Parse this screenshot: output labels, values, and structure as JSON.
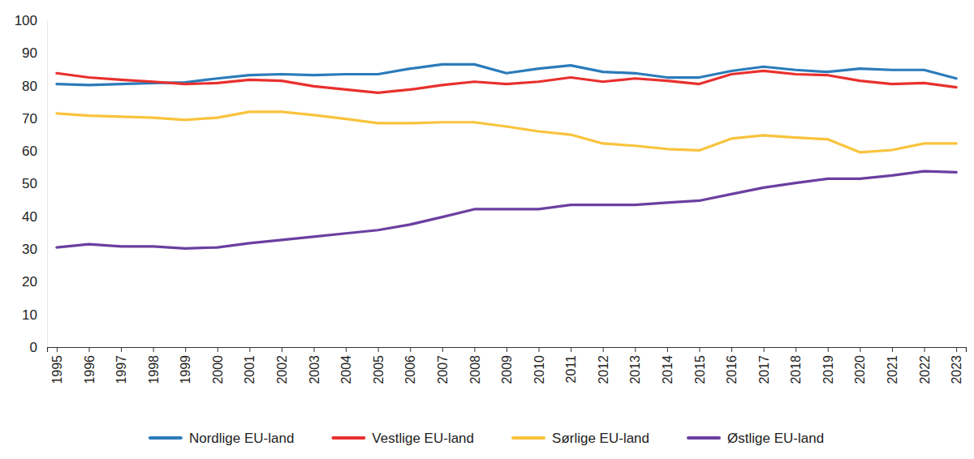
{
  "chart_data": {
    "type": "line",
    "categories": [
      "1995",
      "1996",
      "1997",
      "1998",
      "1999",
      "2000",
      "2001",
      "2002",
      "2003",
      "2004",
      "2005",
      "2006",
      "2007",
      "2008",
      "2009",
      "2010",
      "2011",
      "2012",
      "2013",
      "2014",
      "2015",
      "2016",
      "2017",
      "2018",
      "2019",
      "2020",
      "2021",
      "2022",
      "2023"
    ],
    "series": [
      {
        "name": "Nordlige EU-land",
        "color": "#2b7bba",
        "values": [
          80.5,
          80.2,
          80.5,
          80.8,
          81,
          82.2,
          83.2,
          83.5,
          83.2,
          83.5,
          83.5,
          85.2,
          86.5,
          86.5,
          83.8,
          85.2,
          86.2,
          84.2,
          83.8,
          82.5,
          82.5,
          84.5,
          85.8,
          84.8,
          84.2,
          85.2,
          84.8,
          84.8,
          82.2
        ]
      },
      {
        "name": "Vestlige EU-land",
        "color": "#e8302e",
        "values": [
          83.8,
          82.5,
          81.8,
          81.2,
          80.5,
          80.8,
          81.8,
          81.5,
          79.8,
          78.8,
          77.8,
          78.8,
          80.2,
          81.2,
          80.5,
          81.2,
          82.5,
          81.2,
          82.2,
          81.5,
          80.5,
          83.5,
          84.5,
          83.5,
          83.2,
          81.5,
          80.5,
          80.8,
          79.5
        ]
      },
      {
        "name": "Sørlige EU-land",
        "color": "#f9c33d",
        "values": [
          71.5,
          70.8,
          70.5,
          70.2,
          69.5,
          70.2,
          72,
          72,
          71,
          69.8,
          68.5,
          68.5,
          68.8,
          68.8,
          67.5,
          66,
          65,
          62.3,
          61.6,
          60.6,
          60.2,
          63.8,
          64.8,
          64.1,
          63.6,
          59.6,
          60.3,
          62.3,
          62.3
        ]
      },
      {
        "name": "Østlige EU-land",
        "color": "#6b3fa0",
        "values": [
          30.5,
          31.5,
          30.8,
          30.8,
          30.2,
          30.5,
          31.8,
          32.8,
          33.8,
          34.8,
          35.8,
          37.5,
          39.8,
          42.2,
          42.2,
          42.2,
          43.5,
          43.5,
          43.5,
          44.2,
          44.8,
          46.8,
          48.8,
          50.2,
          51.5,
          51.5,
          52.5,
          53.8,
          53.5
        ]
      }
    ],
    "ylim": [
      0,
      100
    ],
    "yticks": [
      0,
      10,
      20,
      30,
      40,
      50,
      60,
      70,
      80,
      90,
      100
    ],
    "grid": false,
    "legend": "bottom"
  }
}
